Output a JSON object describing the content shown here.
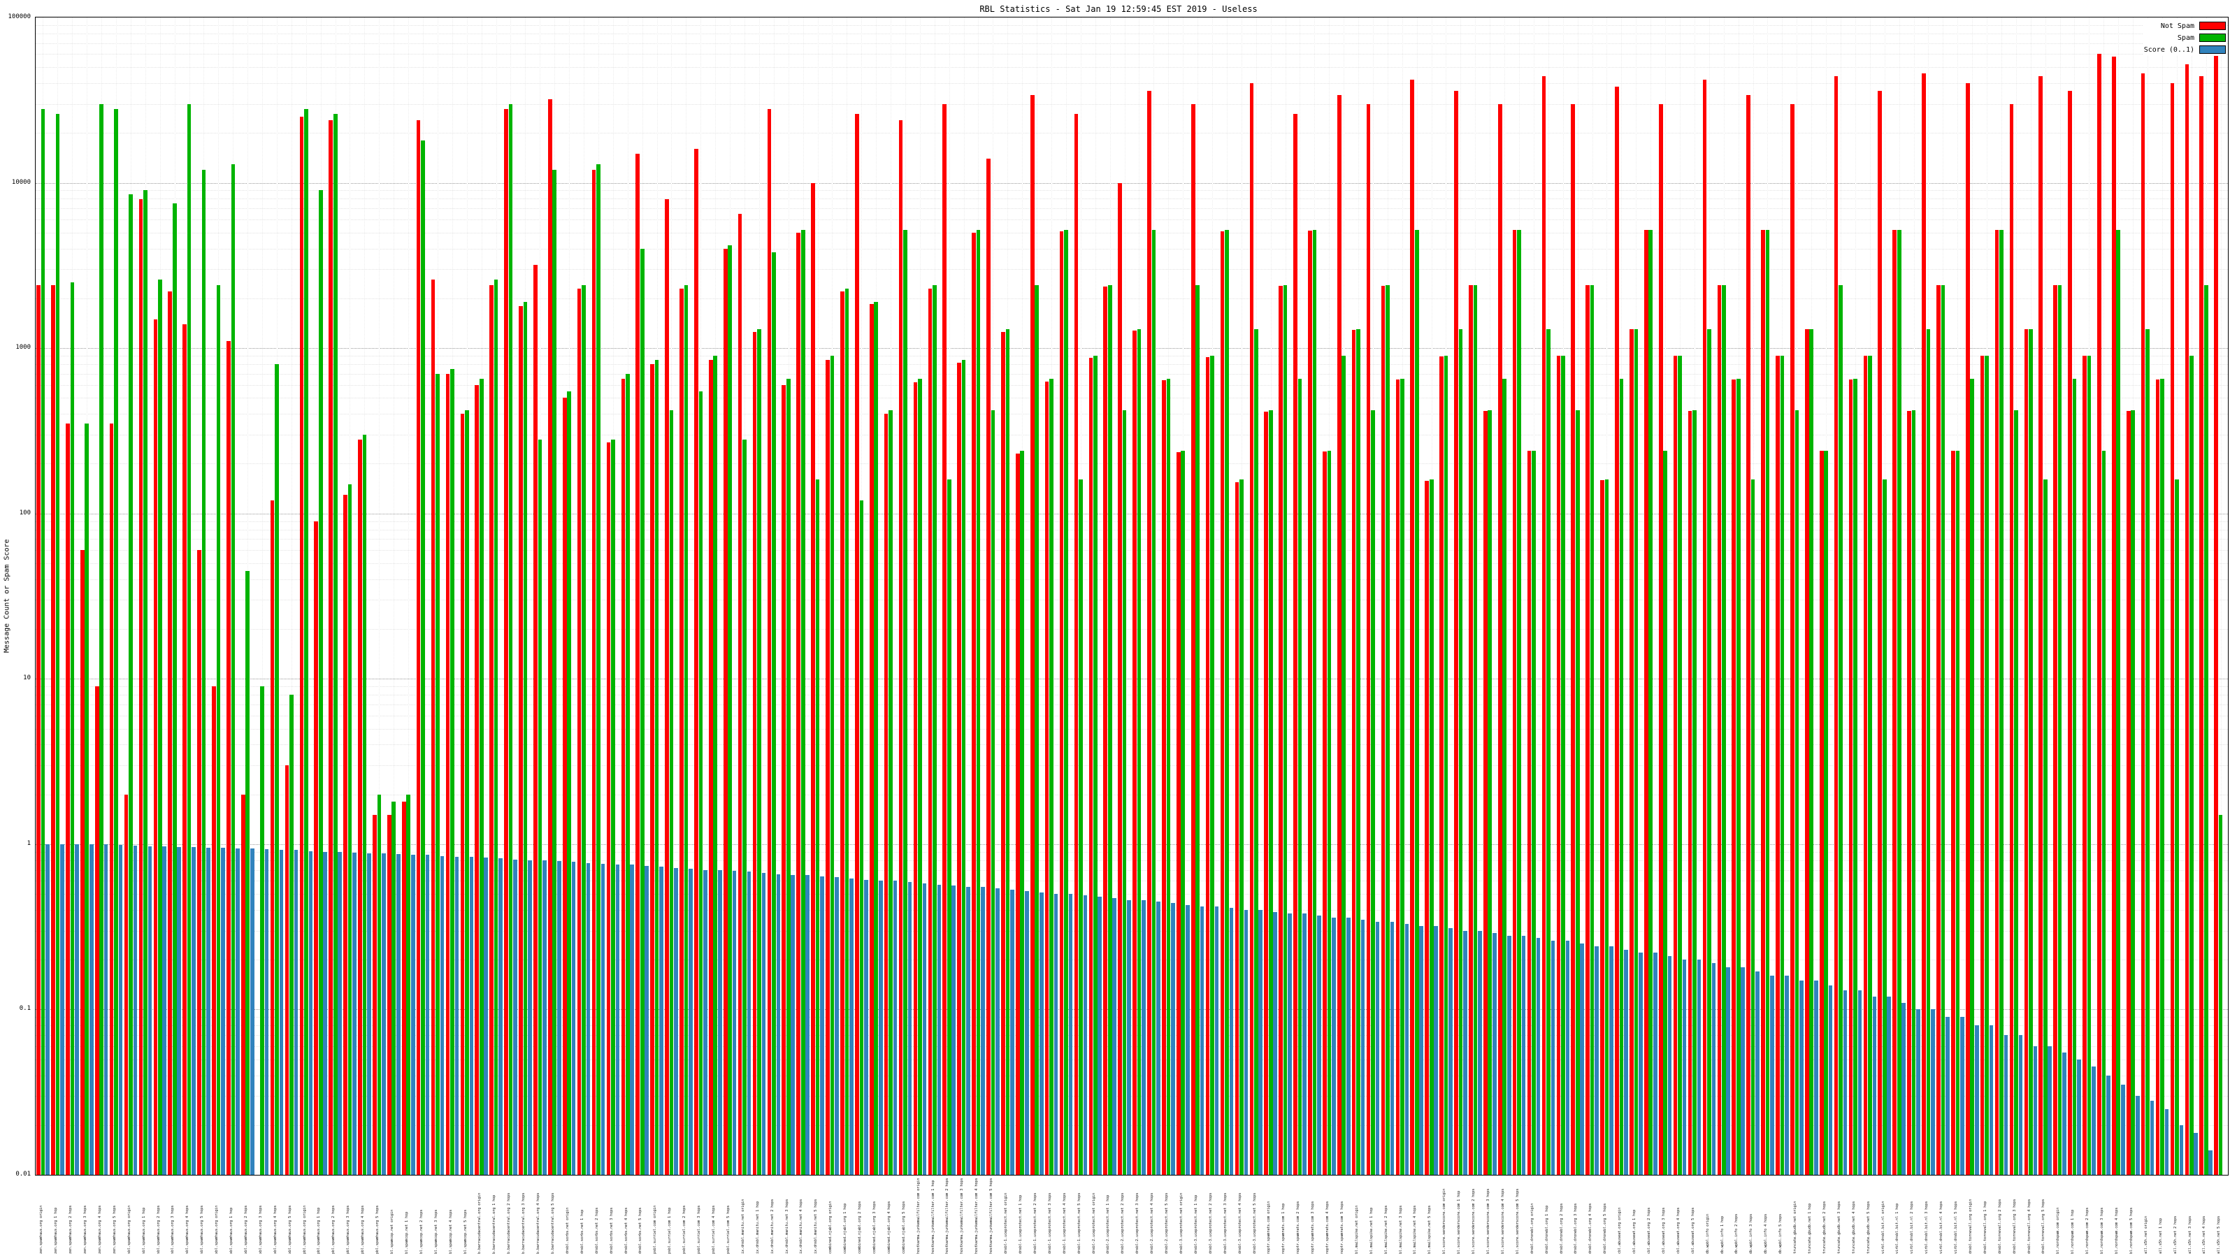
{
  "chart_data": {
    "type": "bar",
    "title": "RBL Statistics - Sat Jan 19 12:59:45 EST 2019 - Useless",
    "ylabel": "Message Count or Spam Score",
    "xlabel": "",
    "yscale": "log",
    "ylim": [
      0.01,
      100000
    ],
    "yticks": [
      "0.01",
      "0.1",
      "1",
      "10",
      "100",
      "1000",
      "10000",
      "100000"
    ],
    "grid": true,
    "legend_position": "top-right",
    "category_bases": [
      "zen.spamhaus.org",
      "sbl.spamhaus.org",
      "xbl.spamhaus.org",
      "pbl.spamhaus.org",
      "bl.spamcop.net",
      "b.barracudacentral.org",
      "dnsbl.sorbs.net",
      "psbl.surriel.com",
      "ix.dnsbl.manitu.net",
      "combined.njabl.org",
      "hostkarma.junkemailfilter.com",
      "dnsbl-1.uceprotect.net",
      "dnsbl-2.uceprotect.net",
      "dnsbl-3.uceprotect.net",
      "noptr.spamrats.com",
      "bl.mailspike.net",
      "bl.score.senderscore.com",
      "dnsbl.dronebl.org",
      "cbl.abuseat.org",
      "db.wpbl.info",
      "truncate.gbudb.net",
      "virbl.dnsbl.bit.nl",
      "dnsbl.tornevall.org",
      "bl.nordspam.com",
      "all.s5h.net"
    ],
    "hop_suffixes": [
      "origin",
      "1 hop",
      "2 hops",
      "3 hops",
      "4 hops",
      "5 hops"
    ],
    "series": [
      {
        "name": "Not Spam",
        "color": "#ff0000",
        "values": [
          2400,
          2400,
          350,
          60,
          9,
          350,
          2,
          8000,
          1500,
          2200,
          1400,
          60,
          9,
          1100,
          2,
          0,
          120,
          3,
          25000,
          90,
          24000,
          130,
          280,
          1.5,
          1.5,
          1.8,
          24000,
          2600,
          700,
          400,
          600,
          2400,
          28000,
          1800,
          3200,
          32000,
          500,
          2300,
          12000,
          270,
          650,
          15000,
          800,
          8000,
          2300,
          16000,
          850,
          4000,
          6500,
          1250,
          28000,
          600,
          5000,
          10000,
          850,
          2200,
          26000,
          1850,
          400,
          24000,
          620,
          2300,
          30000,
          820,
          5000,
          14000,
          1250,
          230,
          34000,
          630,
          5100,
          26000,
          870,
          2350,
          10000,
          1280,
          36000,
          640,
          235,
          30000,
          880,
          5100,
          155,
          40000,
          415,
          2380,
          26000,
          5150,
          238,
          34000,
          1290,
          30000,
          2390,
          645,
          42000,
          158,
          895,
          36000,
          2395,
          418,
          30000,
          5180,
          239,
          44000,
          898,
          30000,
          2398,
          159,
          38000,
          1298,
          5190,
          30000,
          899,
          419,
          42000,
          2399,
          649,
          34000,
          5195,
          899,
          30000,
          1299,
          239,
          44000,
          649,
          899,
          36000,
          5198,
          419,
          46000,
          2399,
          239,
          40000,
          899,
          5199,
          30000,
          1299,
          44000,
          2399,
          36000,
          899,
          60000,
          58000,
          419,
          46000,
          649,
          40000,
          52000,
          44000,
          60000
        ]
      },
      {
        "name": "Spam",
        "color": "#00b400",
        "values": [
          28000,
          26000,
          2500,
          350,
          30000,
          28000,
          8500,
          9000,
          2600,
          7500,
          30000,
          12000,
          2400,
          13000,
          45,
          9,
          800,
          8,
          28000,
          9000,
          26000,
          150,
          300,
          2,
          1.8,
          2,
          18000,
          700,
          750,
          420,
          650,
          2600,
          30000,
          1900,
          280,
          12000,
          550,
          2400,
          13000,
          280,
          700,
          4000,
          850,
          420,
          2400,
          550,
          900,
          4200,
          280,
          1300,
          3800,
          650,
          5200,
          160,
          900,
          2300,
          120,
          1900,
          420,
          5200,
          650,
          2400,
          160,
          850,
          5200,
          420,
          1300,
          240,
          2400,
          650,
          5200,
          160,
          900,
          2400,
          420,
          1300,
          5200,
          650,
          240,
          2400,
          900,
          5200,
          160,
          1300,
          420,
          2400,
          650,
          5200,
          240,
          900,
          1300,
          420,
          2400,
          650,
          5200,
          160,
          900,
          1300,
          2400,
          420,
          650,
          5200,
          240,
          1300,
          900,
          420,
          2400,
          160,
          650,
          1300,
          5200,
          240,
          900,
          420,
          1300,
          2400,
          650,
          160,
          5200,
          900,
          420,
          1300,
          240,
          2400,
          650,
          900,
          160,
          5200,
          420,
          1300,
          2400,
          240,
          650,
          900,
          5200,
          420,
          1300,
          160,
          2400,
          650,
          900,
          240,
          5200,
          420,
          1300,
          650,
          160,
          900,
          2400,
          1.5
        ]
      },
      {
        "name": "Score (0..1)",
        "color": "#3183bd",
        "values": [
          1.0,
          1.0,
          1.0,
          1.0,
          1.0,
          0.99,
          0.98,
          0.97,
          0.97,
          0.96,
          0.96,
          0.95,
          0.95,
          0.94,
          0.94,
          0.93,
          0.92,
          0.92,
          0.91,
          0.9,
          0.9,
          0.89,
          0.88,
          0.88,
          0.87,
          0.86,
          0.86,
          0.85,
          0.84,
          0.84,
          0.83,
          0.82,
          0.81,
          0.8,
          0.8,
          0.79,
          0.78,
          0.77,
          0.76,
          0.75,
          0.75,
          0.74,
          0.73,
          0.72,
          0.71,
          0.7,
          0.7,
          0.69,
          0.68,
          0.67,
          0.66,
          0.65,
          0.65,
          0.64,
          0.63,
          0.62,
          0.61,
          0.6,
          0.6,
          0.59,
          0.58,
          0.57,
          0.56,
          0.55,
          0.55,
          0.54,
          0.53,
          0.52,
          0.51,
          0.5,
          0.5,
          0.49,
          0.48,
          0.47,
          0.46,
          0.46,
          0.45,
          0.44,
          0.43,
          0.42,
          0.42,
          0.41,
          0.4,
          0.4,
          0.39,
          0.38,
          0.38,
          0.37,
          0.36,
          0.36,
          0.35,
          0.34,
          0.34,
          0.33,
          0.32,
          0.32,
          0.31,
          0.3,
          0.3,
          0.29,
          0.28,
          0.28,
          0.27,
          0.26,
          0.26,
          0.25,
          0.24,
          0.24,
          0.23,
          0.22,
          0.22,
          0.21,
          0.2,
          0.2,
          0.19,
          0.18,
          0.18,
          0.17,
          0.16,
          0.16,
          0.15,
          0.15,
          0.14,
          0.13,
          0.13,
          0.12,
          0.12,
          0.11,
          0.1,
          0.1,
          0.09,
          0.09,
          0.08,
          0.08,
          0.07,
          0.07,
          0.06,
          0.06,
          0.055,
          0.05,
          0.045,
          0.04,
          0.035,
          0.03,
          0.028,
          0.025,
          0.02,
          0.018,
          0.014,
          0.01
        ]
      }
    ]
  }
}
